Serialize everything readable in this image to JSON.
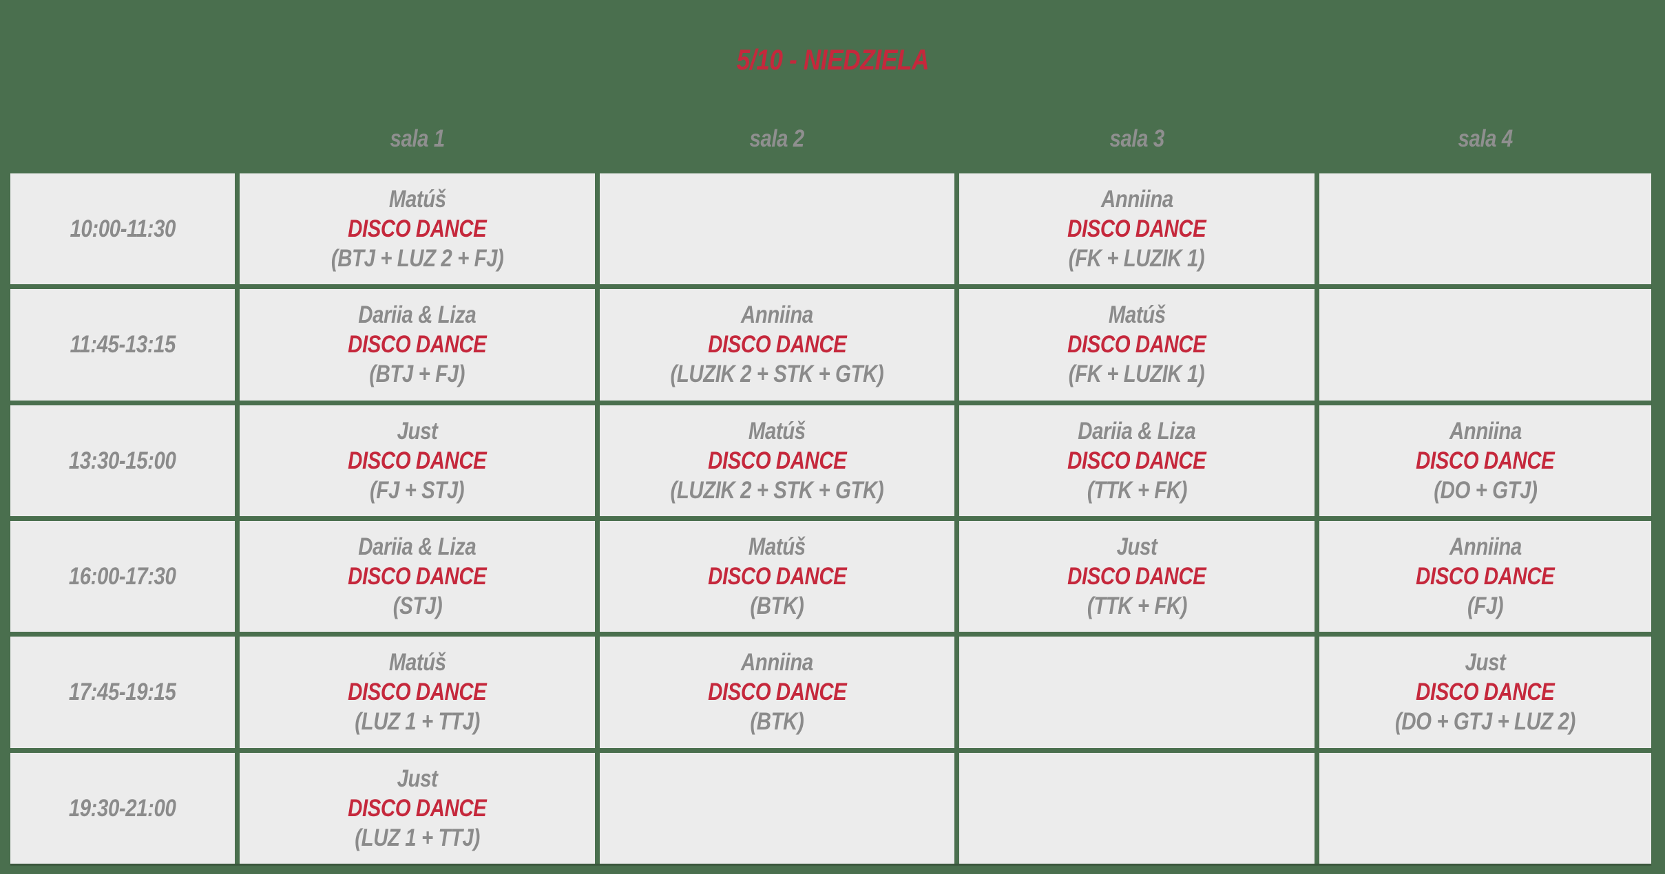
{
  "title": "5/10 - NIEDZIELA",
  "colors": {
    "background_green": "#4A6F4E",
    "cell_gray": "#ECECEC",
    "text_gray": "#8B8B8B",
    "accent_red": "#C5283C"
  },
  "columns": [
    "sala 1",
    "sala 2",
    "sala 3",
    "sala 4"
  ],
  "rows": [
    {
      "time": "10:00-11:30",
      "cells": [
        {
          "teacher": "Matúš",
          "activity": "DISCO DANCE",
          "groups": "(BTJ + LUZ 2 + FJ)"
        },
        {
          "teacher": "",
          "activity": "",
          "groups": ""
        },
        {
          "teacher": "Anniina",
          "activity": "DISCO DANCE",
          "groups": "(FK + LUZIK 1)"
        },
        {
          "teacher": "",
          "activity": "",
          "groups": ""
        }
      ]
    },
    {
      "time": "11:45-13:15",
      "cells": [
        {
          "teacher": "Dariia & Liza",
          "activity": "DISCO DANCE",
          "groups": "(BTJ + FJ)"
        },
        {
          "teacher": "Anniina",
          "activity": "DISCO DANCE",
          "groups": "(LUZIK 2 + STK + GTK)"
        },
        {
          "teacher": "Matúš",
          "activity": "DISCO DANCE",
          "groups": "(FK + LUZIK 1)"
        },
        {
          "teacher": "",
          "activity": "",
          "groups": ""
        }
      ]
    },
    {
      "time": "13:30-15:00",
      "cells": [
        {
          "teacher": "Just",
          "activity": "DISCO DANCE",
          "groups": "(FJ + STJ)"
        },
        {
          "teacher": "Matúš",
          "activity": "DISCO DANCE",
          "groups": "(LUZIK 2 + STK + GTK)"
        },
        {
          "teacher": "Dariia & Liza",
          "activity": "DISCO DANCE",
          "groups": "(TTK + FK)"
        },
        {
          "teacher": "Anniina",
          "activity": "DISCO DANCE",
          "groups": "(DO + GTJ)"
        }
      ]
    },
    {
      "time": "16:00-17:30",
      "cells": [
        {
          "teacher": "Dariia & Liza",
          "activity": "DISCO DANCE",
          "groups": "(STJ)"
        },
        {
          "teacher": "Matúš",
          "activity": "DISCO DANCE",
          "groups": "(BTK)"
        },
        {
          "teacher": "Just",
          "activity": "DISCO DANCE",
          "groups": "(TTK + FK)"
        },
        {
          "teacher": "Anniina",
          "activity": "DISCO DANCE",
          "groups": "(FJ)"
        }
      ]
    },
    {
      "time": "17:45-19:15",
      "cells": [
        {
          "teacher": "Matúš",
          "activity": "DISCO DANCE",
          "groups": "(LUZ 1 + TTJ)"
        },
        {
          "teacher": "Anniina",
          "activity": "DISCO DANCE",
          "groups": "(BTK)"
        },
        {
          "teacher": "",
          "activity": "",
          "groups": ""
        },
        {
          "teacher": "Just",
          "activity": "DISCO DANCE",
          "groups": "(DO + GTJ + LUZ 2)"
        }
      ]
    },
    {
      "time": "19:30-21:00",
      "cells": [
        {
          "teacher": "Just",
          "activity": "DISCO DANCE",
          "groups": "(LUZ 1 + TTJ)"
        },
        {
          "teacher": "",
          "activity": "",
          "groups": ""
        },
        {
          "teacher": "",
          "activity": "",
          "groups": ""
        },
        {
          "teacher": "",
          "activity": "",
          "groups": ""
        }
      ]
    }
  ]
}
